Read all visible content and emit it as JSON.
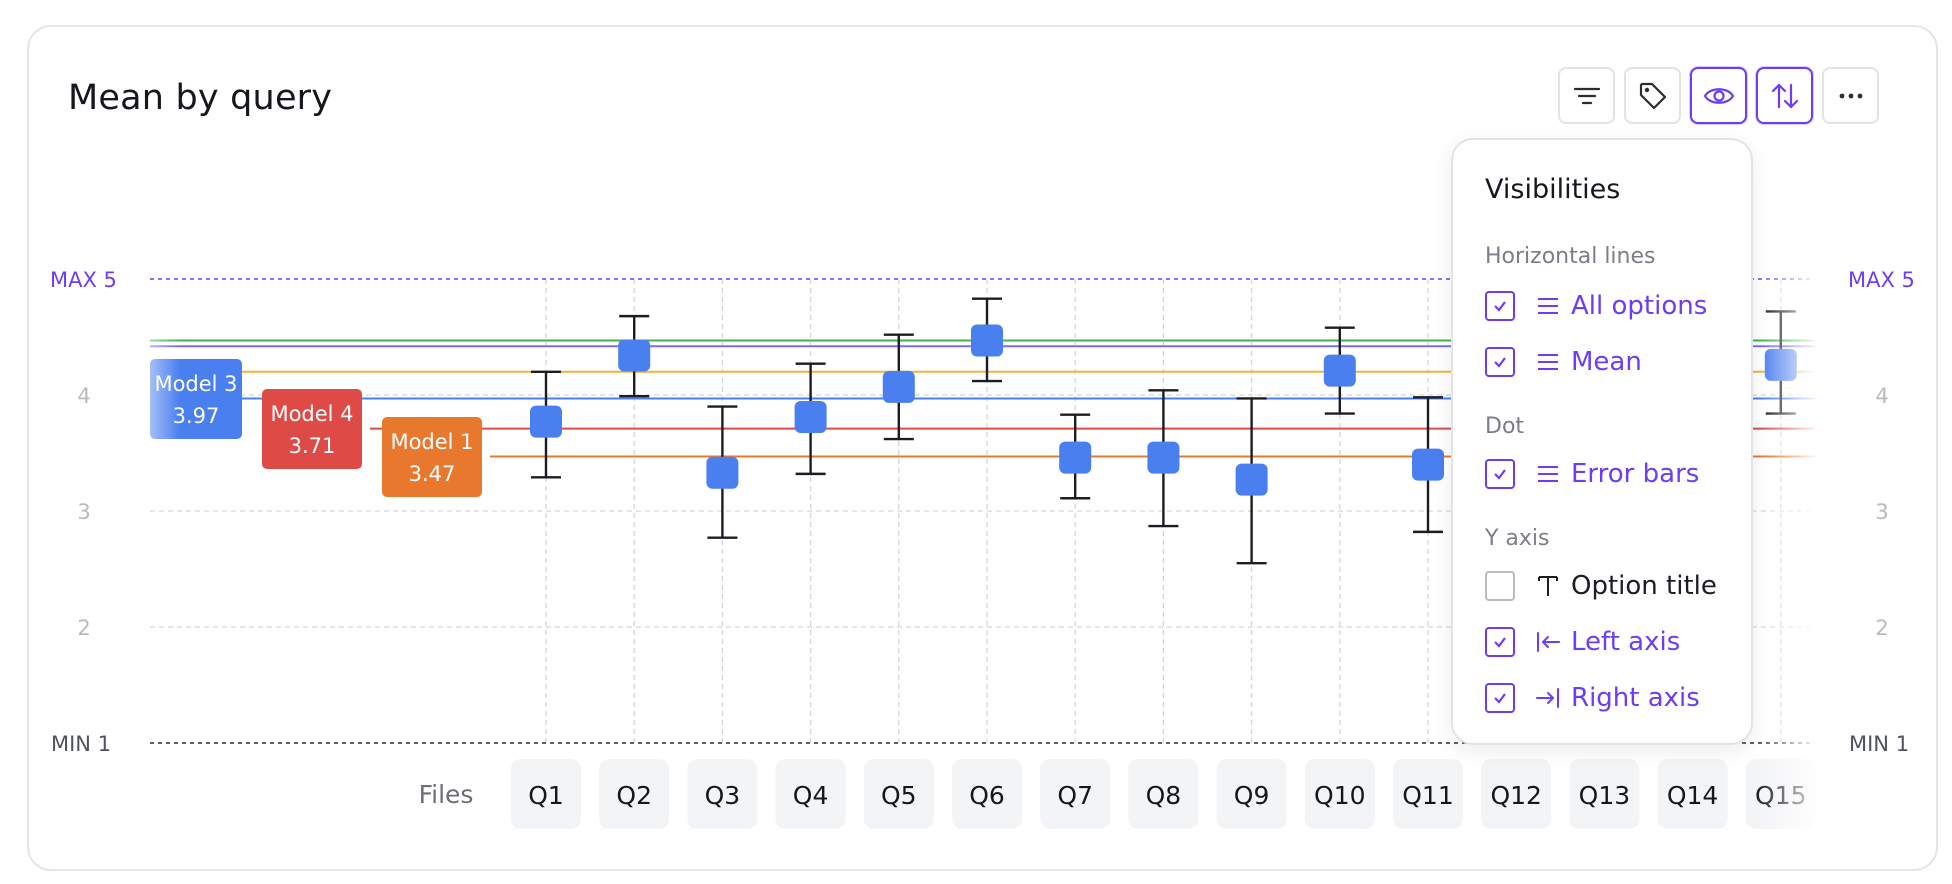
{
  "title": "Mean by query",
  "toolbar": {
    "buttons": [
      {
        "icon": "filter-icon",
        "active": false
      },
      {
        "icon": "tag-icon",
        "active": false
      },
      {
        "icon": "eye-icon",
        "active": true
      },
      {
        "icon": "sort-arrows-icon",
        "active": true
      },
      {
        "icon": "more-icon",
        "active": false
      }
    ]
  },
  "colors": {
    "accent": "#6d3cf5",
    "point": "#4a7ff0",
    "model1": "#e8782e",
    "model3": "#4a7ff0",
    "model4": "#de4a46",
    "green_line": "#3fb24f",
    "purple_line": "#7c6cf2",
    "yellow_line": "#f0b43a"
  },
  "popup": {
    "title": "Visibilities",
    "sections": [
      {
        "label": "Horizontal lines",
        "items": [
          {
            "label": "All options",
            "checked": true,
            "icon": "lines-icon"
          },
          {
            "label": "Mean",
            "checked": true,
            "icon": "lines-icon"
          }
        ]
      },
      {
        "label": "Dot",
        "items": [
          {
            "label": "Error bars",
            "checked": true,
            "icon": "lines-icon"
          }
        ]
      },
      {
        "label": "Y axis",
        "items": [
          {
            "label": "Option title",
            "checked": false,
            "icon": "text-icon"
          },
          {
            "label": "Left axis",
            "checked": true,
            "icon": "arrow-left-bar-icon"
          },
          {
            "label": "Right axis",
            "checked": true,
            "icon": "arrow-right-bar-icon"
          }
        ]
      }
    ]
  },
  "chart_data": {
    "type": "scatter",
    "x_axis_label": "Files",
    "categories": [
      "Q1",
      "Q2",
      "Q3",
      "Q4",
      "Q5",
      "Q6",
      "Q7",
      "Q8",
      "Q9",
      "Q10",
      "Q11",
      "Q12",
      "Q13",
      "Q14",
      "Q15"
    ],
    "ylim": [
      1,
      5
    ],
    "y_ticks": [
      "2",
      "3",
      "4"
    ],
    "max_label": "MAX 5",
    "min_label": "MIN 1",
    "grid": true,
    "mean": [
      3.77,
      4.34,
      3.33,
      3.81,
      4.07,
      4.47,
      3.46,
      3.46,
      3.27,
      4.21,
      3.4,
      null,
      null,
      null,
      4.26
    ],
    "err_low": [
      3.29,
      3.99,
      2.77,
      3.32,
      3.62,
      4.12,
      3.11,
      2.87,
      2.55,
      3.84,
      2.82,
      null,
      null,
      null,
      3.84
    ],
    "err_high": [
      4.2,
      4.68,
      3.9,
      4.27,
      4.52,
      4.83,
      3.83,
      4.04,
      3.97,
      4.58,
      3.98,
      null,
      null,
      null,
      4.72
    ],
    "reference_lines": [
      {
        "name": "",
        "value": 4.47,
        "color": "#3fb24f"
      },
      {
        "name": "",
        "value": 4.42,
        "color": "#7c6cf2"
      },
      {
        "name": "",
        "value": 4.2,
        "color": "#f0b43a"
      },
      {
        "name": "Model 3",
        "value": 3.97,
        "color": "#4a7ff0"
      },
      {
        "name": "Model 4",
        "value": 3.71,
        "color": "#de4a46"
      },
      {
        "name": "Model 1",
        "value": 3.47,
        "color": "#e8782e"
      }
    ],
    "labels": [
      {
        "name": "Model 3",
        "value_text": "3.97",
        "color": "#4a7ff0"
      },
      {
        "name": "Model 4",
        "value_text": "3.71",
        "color": "#de4a46"
      },
      {
        "name": "Model 1",
        "value_text": "3.47",
        "color": "#e8782e"
      }
    ]
  }
}
